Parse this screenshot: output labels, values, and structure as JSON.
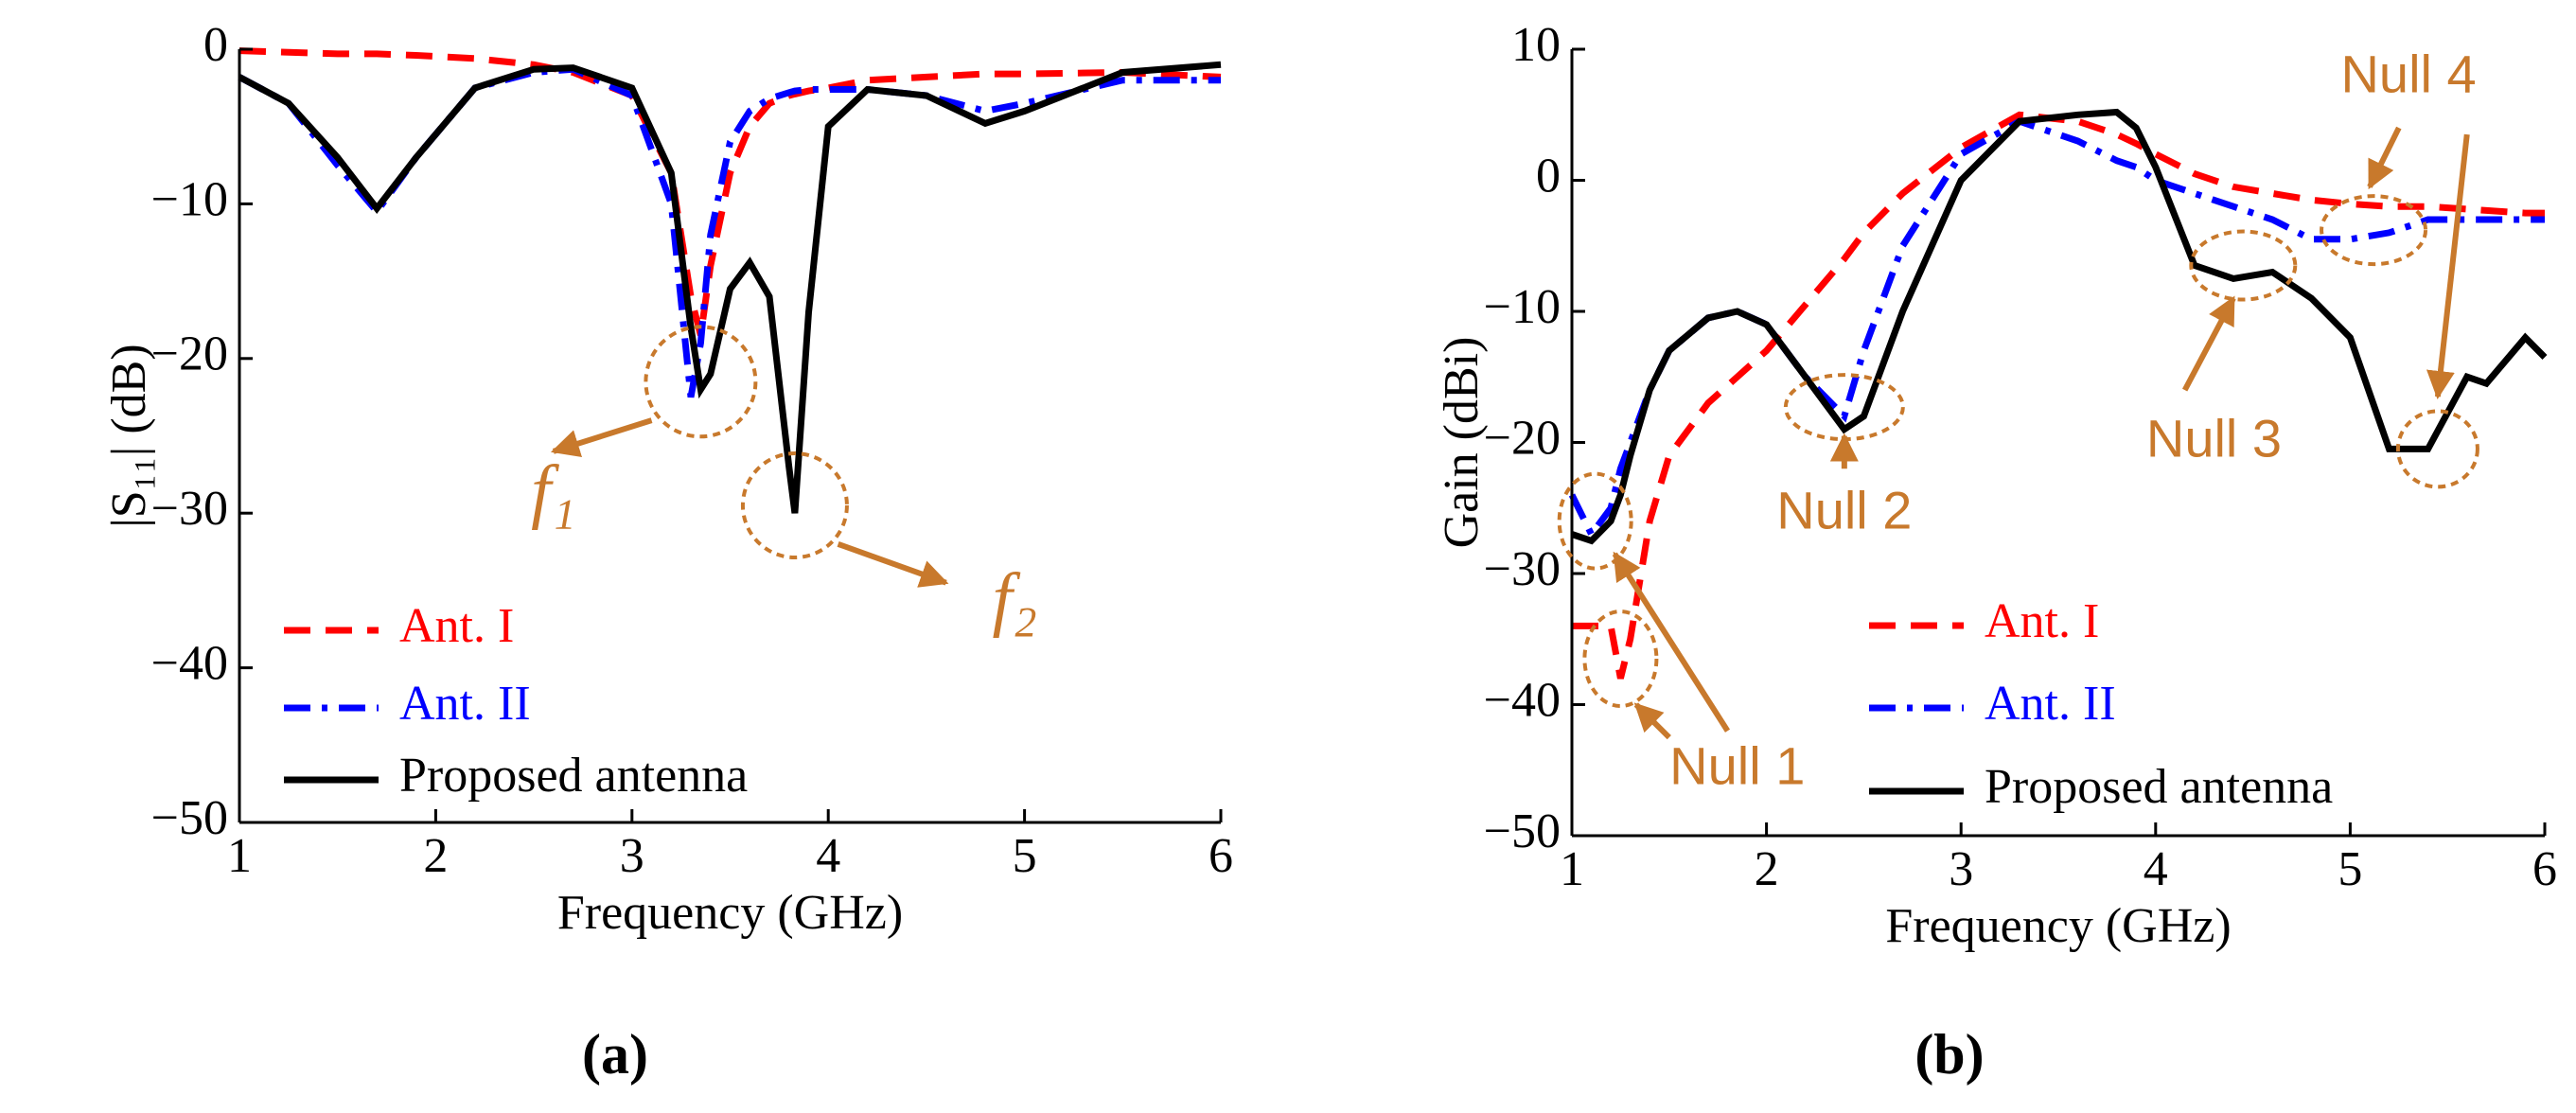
{
  "chart_data": [
    {
      "type": "line",
      "label": "(a)",
      "xlabel": "Frequency (GHz)",
      "ylabel": "|S₁₁| (dB)",
      "xlim": [
        1,
        6
      ],
      "xticks": [
        1,
        2,
        3,
        4,
        5,
        6
      ],
      "ylim": [
        -50,
        0
      ],
      "yticks": [
        0,
        -10,
        -20,
        -30,
        -40,
        -50
      ],
      "x": [
        1,
        1.25,
        1.5,
        1.7,
        1.9,
        2.2,
        2.5,
        2.7,
        3.0,
        3.2,
        3.3,
        3.35,
        3.4,
        3.5,
        3.6,
        3.7,
        3.8,
        3.83,
        3.9,
        4.0,
        4.2,
        4.5,
        4.8,
        5.0,
        5.5,
        6
      ],
      "series": [
        {
          "name": "Ant. I",
          "color": "#ff0000",
          "dash": "dashed",
          "values": [
            -0.1,
            -0.2,
            -0.3,
            -0.3,
            -0.4,
            -0.6,
            -1,
            -1.5,
            -3,
            -8,
            -16,
            -18.5,
            -14,
            -8,
            -5,
            -3.5,
            -3,
            -2.9,
            -2.7,
            -2.5,
            -2,
            -1.8,
            -1.6,
            -1.6,
            -1.5,
            -1.8
          ]
        },
        {
          "name": "Ant. II",
          "color": "#0000ff",
          "dash": "dashdot",
          "values": [
            -1.8,
            -3.5,
            -7.5,
            -10.5,
            -7,
            -2.5,
            -1.5,
            -1.3,
            -3,
            -10,
            -22.5,
            -19,
            -12,
            -6,
            -4,
            -3.2,
            -2.8,
            -2.7,
            -2.6,
            -2.6,
            -2.6,
            -3,
            -4,
            -3.5,
            -2,
            -2
          ]
        },
        {
          "name": "Proposed antenna",
          "color": "#000000",
          "dash": "solid",
          "values": [
            -1.8,
            -3.5,
            -7,
            -10.3,
            -7,
            -2.5,
            -1.3,
            -1.2,
            -2.5,
            -8,
            -18,
            -22,
            -21,
            -15.5,
            -13.8,
            -16,
            -27,
            -30,
            -17,
            -5,
            -2.6,
            -3,
            -4.8,
            -4,
            -1.5,
            -1
          ]
        }
      ],
      "annotations": [
        "f₁",
        "f₂"
      ]
    },
    {
      "type": "line",
      "label": "(b)",
      "xlabel": "Frequency (GHz)",
      "ylabel": "Gain (dBi)",
      "xlim": [
        1,
        6
      ],
      "xticks": [
        1,
        2,
        3,
        4,
        5,
        6
      ],
      "ylim": [
        -50,
        10
      ],
      "yticks": [
        10,
        0,
        -10,
        -20,
        -30,
        -40,
        -50
      ],
      "x": [
        1,
        1.1,
        1.2,
        1.25,
        1.3,
        1.4,
        1.5,
        1.7,
        1.85,
        2.0,
        2.2,
        2.4,
        2.5,
        2.7,
        3.0,
        3.3,
        3.6,
        3.8,
        3.9,
        4.0,
        4.2,
        4.4,
        4.6,
        4.8,
        5.0,
        5.2,
        5.3,
        5.4,
        5.6,
        5.7,
        5.9,
        6
      ],
      "series": [
        {
          "name": "Ant. I",
          "color": "#ff0000",
          "dash": "dashed",
          "values": [
            -34,
            -34,
            -34,
            -38,
            -35,
            -26,
            -21,
            -17,
            -15,
            -13,
            -9.5,
            -6,
            -4,
            -1,
            2.5,
            5,
            4.5,
            3.5,
            2.8,
            2,
            0.5,
            -0.5,
            -1,
            -1.5,
            -1.8,
            -2,
            -2,
            -2,
            -2.2,
            -2.3,
            -2.5,
            -2.5
          ]
        },
        {
          "name": "Ant. II",
          "color": "#0000ff",
          "dash": "dashdot",
          "values": [
            -24,
            -27,
            -25,
            -22,
            -20,
            -16,
            -13,
            -10.5,
            -10,
            -11,
            -15,
            -18,
            -13,
            -5,
            2,
            4.5,
            3,
            1.5,
            1,
            0,
            -1,
            -2,
            -3,
            -4.5,
            -4.5,
            -4,
            -3.5,
            -3,
            -3,
            -3,
            -3,
            -3
          ]
        },
        {
          "name": "Proposed antenna",
          "color": "#000000",
          "dash": "solid",
          "values": [
            -27,
            -27.5,
            -26,
            -24,
            -21,
            -16,
            -13,
            -10.5,
            -10,
            -11,
            -15,
            -19,
            -18,
            -10,
            0,
            4.5,
            5,
            5.2,
            4,
            1,
            -6.5,
            -7.5,
            -7,
            -9,
            -12,
            -20.5,
            -20.5,
            -20.5,
            -15,
            -15.5,
            -12,
            -13.5
          ]
        }
      ],
      "annotations": [
        "Null 1",
        "Null 2",
        "Null 3",
        "Null 4"
      ]
    }
  ]
}
